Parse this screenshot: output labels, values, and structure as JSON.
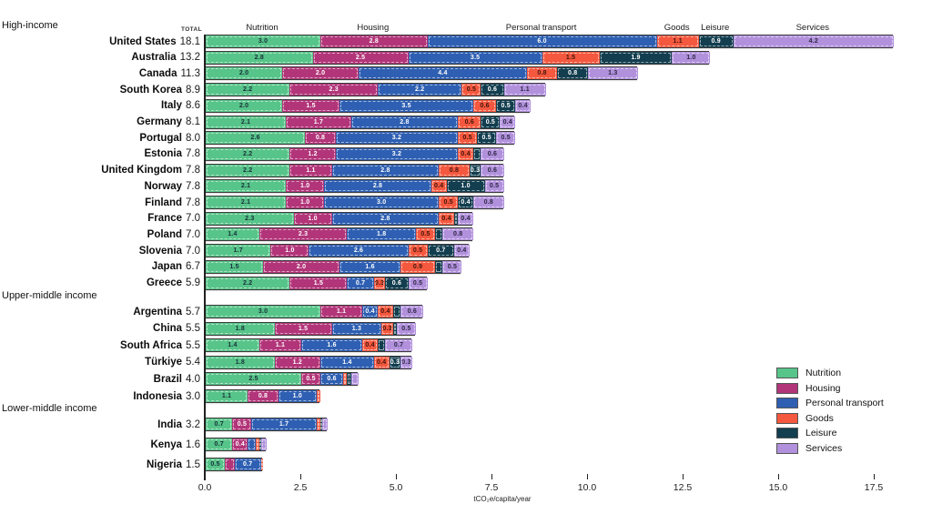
{
  "chart_data": {
    "type": "bar",
    "orientation": "horizontal",
    "stacked": true,
    "xlabel": "tCO₂e/capita/year",
    "total_column_label": "TOTAL",
    "xticks": [
      0.0,
      2.5,
      5.0,
      7.5,
      10.0,
      12.5,
      15.0,
      17.5
    ],
    "xlim": [
      0,
      18.1
    ],
    "grid": false,
    "legend_position": "right-bottom",
    "value_label_min": 0.3,
    "categories": [
      {
        "name": "Nutrition",
        "color": "#57C489",
        "text": "#173039"
      },
      {
        "name": "Housing",
        "color": "#B23579",
        "text": "#ffffff"
      },
      {
        "name": "Personal transport",
        "color": "#2E5FB2",
        "text": "#ffffff"
      },
      {
        "name": "Goods",
        "color": "#F4583E",
        "text": "#42150D"
      },
      {
        "name": "Leisure",
        "color": "#123E4F",
        "text": "#ffffff"
      },
      {
        "name": "Services",
        "color": "#B191DC",
        "text": "#2E2744"
      }
    ],
    "groups": [
      {
        "label": "High-income",
        "rows": [
          {
            "country": "United States",
            "total": "18.1",
            "values": [
              3.0,
              2.8,
              6.0,
              1.1,
              0.9,
              4.2
            ]
          },
          {
            "country": "Australia",
            "total": "13.2",
            "values": [
              2.8,
              2.5,
              3.5,
              1.5,
              1.9,
              1.0
            ]
          },
          {
            "country": "Canada",
            "total": "11.3",
            "values": [
              2.0,
              2.0,
              4.4,
              0.8,
              0.8,
              1.3
            ]
          },
          {
            "country": "South Korea",
            "total": "8.9",
            "values": [
              2.2,
              2.3,
              2.2,
              0.5,
              0.6,
              1.1
            ]
          },
          {
            "country": "Italy",
            "total": "8.6",
            "values": [
              2.0,
              1.5,
              3.5,
              0.6,
              0.5,
              0.4
            ]
          },
          {
            "country": "Germany",
            "total": "8.1",
            "values": [
              2.1,
              1.7,
              2.8,
              0.6,
              0.5,
              0.4
            ]
          },
          {
            "country": "Portugal",
            "total": "8.0",
            "values": [
              2.6,
              0.8,
              3.2,
              0.5,
              0.5,
              0.5
            ]
          },
          {
            "country": "Estonia",
            "total": "7.8",
            "values": [
              2.2,
              1.2,
              3.2,
              0.4,
              0.2,
              0.6
            ]
          },
          {
            "country": "United Kingdom",
            "total": "7.8",
            "values": [
              2.2,
              1.1,
              2.8,
              0.8,
              0.3,
              0.6
            ]
          },
          {
            "country": "Norway",
            "total": "7.8",
            "values": [
              2.1,
              1.0,
              2.8,
              0.4,
              1.0,
              0.5
            ]
          },
          {
            "country": "Finland",
            "total": "7.8",
            "values": [
              2.1,
              1.0,
              3.0,
              0.5,
              0.4,
              0.8
            ]
          },
          {
            "country": "France",
            "total": "7.0",
            "values": [
              2.3,
              1.0,
              2.8,
              0.4,
              0.1,
              0.4
            ]
          },
          {
            "country": "Poland",
            "total": "7.0",
            "values": [
              1.4,
              2.3,
              1.8,
              0.5,
              0.2,
              0.8
            ]
          },
          {
            "country": "Slovenia",
            "total": "7.0",
            "values": [
              1.7,
              1.0,
              2.6,
              0.5,
              0.7,
              0.4
            ]
          },
          {
            "country": "Japan",
            "total": "6.7",
            "values": [
              1.5,
              2.0,
              1.6,
              0.9,
              0.2,
              0.5
            ]
          },
          {
            "country": "Greece",
            "total": "5.9",
            "values": [
              2.2,
              1.5,
              0.7,
              0.3,
              0.6,
              0.5
            ]
          }
        ]
      },
      {
        "label": "Upper-middle income",
        "rows": [
          {
            "country": "Argentina",
            "total": "5.7",
            "values": [
              3.0,
              1.1,
              0.4,
              0.4,
              0.2,
              0.6
            ]
          },
          {
            "country": "China",
            "total": "5.5",
            "values": [
              1.8,
              1.5,
              1.3,
              0.3,
              0.1,
              0.5
            ]
          },
          {
            "country": "South Africa",
            "total": "5.5",
            "values": [
              1.4,
              1.1,
              1.6,
              0.4,
              0.2,
              0.7
            ]
          },
          {
            "country": "Türkiye",
            "total": "5.4",
            "values": [
              1.8,
              1.2,
              1.4,
              0.4,
              0.3,
              0.3
            ]
          },
          {
            "country": "Brazil",
            "total": "4.0",
            "values": [
              2.5,
              0.5,
              0.6,
              0.1,
              0.1,
              0.2
            ]
          },
          {
            "country": "Indonesia",
            "total": "3.0",
            "values": [
              1.1,
              0.8,
              1.0,
              0.1,
              0,
              0
            ]
          }
        ]
      },
      {
        "label": "Lower-middle income",
        "rows": [
          {
            "country": "India",
            "total": "3.2",
            "values": [
              0.7,
              0.5,
              1.7,
              0.1,
              0.05,
              0.15
            ]
          },
          {
            "country": "Kenya",
            "total": "1.6",
            "values": [
              0.7,
              0.4,
              0.2,
              0.1,
              0.05,
              0.15
            ]
          },
          {
            "country": "Nigeria",
            "total": "1.5",
            "values": [
              0.5,
              0.25,
              0.7,
              0.05,
              0,
              0
            ]
          }
        ]
      }
    ]
  }
}
